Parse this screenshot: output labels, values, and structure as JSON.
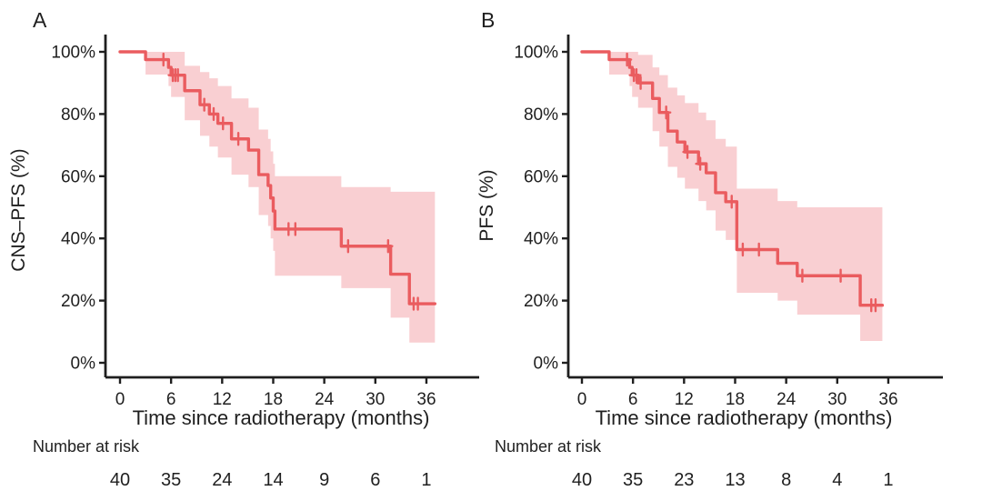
{
  "colors": {
    "curve": "#ea5c5f",
    "band": "#f9cfd2",
    "axis": "#1f1f1f",
    "text": "#1f1f1f"
  },
  "panels": [
    {
      "label": "A",
      "ylabel": "CNS–PFS (%)",
      "xlabel": "Time since radiotherapy (months)",
      "risk_label": "Number at risk"
    },
    {
      "label": "B",
      "ylabel": "PFS (%)",
      "xlabel": "Time since radiotherapy (months)",
      "risk_label": "Number at risk"
    }
  ],
  "chart_data": [
    {
      "type": "line",
      "subtype": "kaplan_meier_step",
      "panel_label": "A",
      "title": "",
      "xlabel": "Time since radiotherapy (months)",
      "ylabel": "CNS–PFS (%)",
      "xlim": [
        0,
        42
      ],
      "ylim": [
        0,
        100
      ],
      "grid": false,
      "legend": "none",
      "xticks": [
        0,
        6,
        12,
        18,
        24,
        30,
        36
      ],
      "yticks": [
        0,
        20,
        40,
        60,
        80,
        100
      ],
      "ytick_labels": [
        "0%",
        "20%",
        "40%",
        "60%",
        "80%",
        "100%"
      ],
      "end_time": 37.0,
      "survival_steps": [
        [
          0,
          100
        ],
        [
          3.0,
          97.5
        ],
        [
          5.7,
          95.0
        ],
        [
          6.0,
          92.5
        ],
        [
          7.6,
          87.5
        ],
        [
          9.4,
          83.0
        ],
        [
          10.5,
          80.0
        ],
        [
          11.5,
          77.0
        ],
        [
          13.1,
          72.0
        ],
        [
          15.1,
          68.4
        ],
        [
          16.3,
          60.5
        ],
        [
          17.4,
          57.0
        ],
        [
          17.7,
          53.0
        ],
        [
          18.0,
          48.8
        ],
        [
          18.2,
          43.0
        ],
        [
          26.0,
          37.5
        ],
        [
          31.8,
          28.5
        ],
        [
          34.0,
          19.0
        ]
      ],
      "censor_times": [
        5.1,
        6.2,
        6.5,
        6.8,
        9.9,
        11.0,
        12.1,
        13.9,
        19.8,
        20.6,
        26.8,
        31.5,
        34.5,
        35.0
      ],
      "ci_band": [
        [
          3.0,
          92.7,
          100
        ],
        [
          5.7,
          89,
          100
        ],
        [
          6.0,
          85.5,
          100
        ],
        [
          7.6,
          78,
          95.5
        ],
        [
          9.4,
          73,
          93.5
        ],
        [
          10.5,
          69.5,
          91.5
        ],
        [
          11.5,
          66,
          89
        ],
        [
          13.1,
          60.5,
          85
        ],
        [
          15.1,
          56.5,
          82
        ],
        [
          16.3,
          47.5,
          75
        ],
        [
          17.4,
          44,
          72
        ],
        [
          17.7,
          40,
          68
        ],
        [
          18.0,
          36,
          64
        ],
        [
          18.2,
          28,
          60
        ],
        [
          26.0,
          24,
          56.5
        ],
        [
          31.8,
          14.5,
          55
        ],
        [
          34.0,
          6.5,
          55
        ]
      ],
      "number_at_risk": {
        "label": "Number at risk",
        "times": [
          0,
          6,
          12,
          18,
          24,
          30,
          36
        ],
        "counts": [
          40,
          35,
          24,
          14,
          9,
          6,
          1
        ]
      }
    },
    {
      "type": "line",
      "subtype": "kaplan_meier_step",
      "panel_label": "B",
      "title": "",
      "xlabel": "Time since radiotherapy (months)",
      "ylabel": "PFS (%)",
      "xlim": [
        0,
        42
      ],
      "ylim": [
        0,
        100
      ],
      "grid": false,
      "legend": "none",
      "xticks": [
        0,
        6,
        12,
        18,
        24,
        30,
        36
      ],
      "yticks": [
        0,
        20,
        40,
        60,
        80,
        100
      ],
      "ytick_labels": [
        "0%",
        "20%",
        "40%",
        "60%",
        "80%",
        "100%"
      ],
      "end_time": 35.3,
      "survival_steps": [
        [
          0,
          100
        ],
        [
          3.2,
          97.5
        ],
        [
          5.6,
          95.0
        ],
        [
          5.9,
          92.5
        ],
        [
          6.6,
          90.0
        ],
        [
          8.3,
          85.0
        ],
        [
          9.1,
          80.5
        ],
        [
          10.1,
          74.5
        ],
        [
          11.2,
          71.0
        ],
        [
          12.1,
          67.8
        ],
        [
          13.7,
          64.0
        ],
        [
          14.6,
          61.1
        ],
        [
          15.7,
          54.7
        ],
        [
          16.9,
          51.8
        ],
        [
          18.2,
          36.4
        ],
        [
          23.0,
          32.0
        ],
        [
          25.3,
          28.0
        ],
        [
          32.7,
          18.5
        ]
      ],
      "censor_times": [
        5.3,
        6.1,
        6.4,
        6.9,
        9.9,
        12.4,
        13.9,
        17.6,
        18.9,
        20.8,
        25.9,
        30.4,
        34.0,
        34.5
      ],
      "ci_band": [
        [
          3.2,
          92.7,
          100
        ],
        [
          5.6,
          89,
          100
        ],
        [
          5.9,
          85.5,
          100
        ],
        [
          6.6,
          82,
          99
        ],
        [
          8.3,
          74.5,
          95
        ],
        [
          9.1,
          69.5,
          92.5
        ],
        [
          10.1,
          63,
          88.5
        ],
        [
          11.2,
          59.5,
          86
        ],
        [
          12.1,
          56,
          83.5
        ],
        [
          13.7,
          52,
          80.5
        ],
        [
          14.6,
          49,
          78
        ],
        [
          15.7,
          42.5,
          72
        ],
        [
          16.9,
          39.5,
          69.5
        ],
        [
          18.2,
          22.5,
          56
        ],
        [
          23.0,
          20,
          52
        ],
        [
          25.3,
          15.5,
          50
        ],
        [
          32.7,
          7,
          50
        ]
      ],
      "number_at_risk": {
        "label": "Number at risk",
        "times": [
          0,
          6,
          12,
          18,
          24,
          30,
          36
        ],
        "counts": [
          40,
          35,
          23,
          13,
          8,
          4,
          1
        ]
      }
    }
  ]
}
